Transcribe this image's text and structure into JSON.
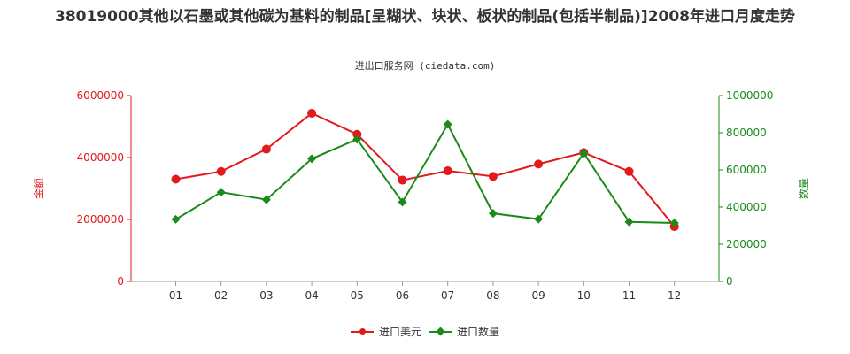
{
  "chart_data": {
    "type": "line",
    "title": "38019000其他以石墨或其他碳为基料的制品[呈糊状、块状、板状的制品(包括半制品)]2008年进口月度走势",
    "subtitle": "进出口服务网 (ciedata.com)",
    "categories": [
      "01",
      "02",
      "03",
      "04",
      "05",
      "06",
      "07",
      "08",
      "09",
      "10",
      "11",
      "12"
    ],
    "y_left": {
      "label": "金额",
      "ticks": [
        "0",
        "2000000",
        "4000000",
        "6000000"
      ],
      "lim": [
        0,
        6000000
      ],
      "color": "#e31a1c"
    },
    "y_right": {
      "label": "数量",
      "ticks": [
        "0",
        "200000",
        "400000",
        "600000",
        "800000",
        "1000000"
      ],
      "lim": [
        0,
        1000000
      ],
      "color": "#1a8a1a"
    },
    "series": [
      {
        "name": "进口美元",
        "axis": "left",
        "color": "#e31a1c",
        "marker": "circle",
        "values": [
          3300000,
          3550000,
          4270000,
          5430000,
          4750000,
          3270000,
          3570000,
          3390000,
          3790000,
          4160000,
          3550000,
          1770000
        ]
      },
      {
        "name": "进口数量",
        "axis": "right",
        "color": "#1a8a1a",
        "marker": "diamond",
        "values": [
          334000,
          480000,
          440000,
          660000,
          765000,
          427000,
          845000,
          366000,
          335000,
          690000,
          320000,
          314000
        ]
      }
    ],
    "grid": false,
    "legend_position": "bottom"
  }
}
